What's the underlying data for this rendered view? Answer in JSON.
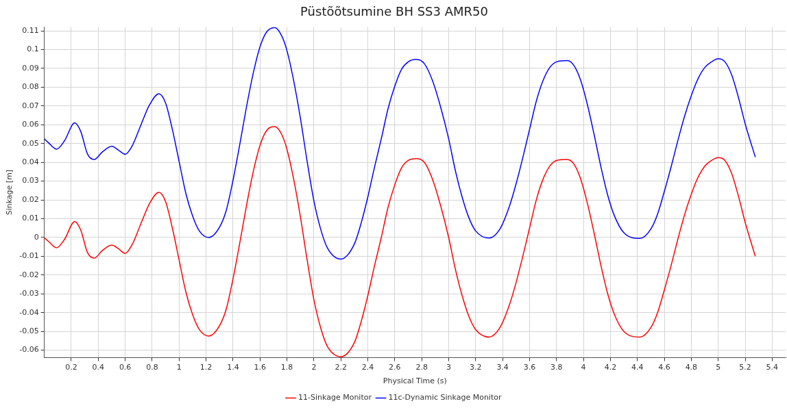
{
  "chart_data": {
    "type": "line",
    "title": "Püstõõtsumine BH SS3 AMR50",
    "xlabel": "Physical Time (s)",
    "ylabel": "Sinkage [m]",
    "x": [
      0,
      0.03,
      0.09,
      0.15,
      0.225,
      0.27,
      0.32,
      0.37,
      0.43,
      0.5,
      0.55,
      0.6,
      0.65,
      0.72,
      0.78,
      0.85,
      0.9,
      0.95,
      1.0,
      1.05,
      1.1,
      1.15,
      1.22,
      1.3,
      1.35,
      1.4,
      1.45,
      1.5,
      1.55,
      1.6,
      1.65,
      1.71,
      1.76,
      1.8,
      1.85,
      1.9,
      1.95,
      2.0,
      2.05,
      2.1,
      2.2,
      2.3,
      2.35,
      2.4,
      2.45,
      2.5,
      2.55,
      2.6,
      2.65,
      2.7,
      2.76,
      2.82,
      2.88,
      2.94,
      3.0,
      3.05,
      3.1,
      3.15,
      3.2,
      3.3,
      3.38,
      3.45,
      3.5,
      3.55,
      3.6,
      3.65,
      3.7,
      3.75,
      3.8,
      3.88,
      3.93,
      3.98,
      4.03,
      4.08,
      4.13,
      4.18,
      4.23,
      4.3,
      4.42,
      4.5,
      4.55,
      4.6,
      4.65,
      4.7,
      4.75,
      4.8,
      4.85,
      4.9,
      4.95,
      5.0,
      5.05,
      5.1,
      5.15,
      5.2,
      5.275
    ],
    "series": [
      {
        "name": "11-Sinkage Monitor",
        "color": "#ff0000",
        "values": [
          -0.0002,
          -0.002,
          -0.0055,
          -0.001,
          0.0085,
          0.004,
          -0.008,
          -0.011,
          -0.007,
          -0.004,
          -0.006,
          -0.0085,
          -0.004,
          0.008,
          0.018,
          0.024,
          0.019,
          0.005,
          -0.012,
          -0.029,
          -0.041,
          -0.049,
          -0.0525,
          -0.047,
          -0.038,
          -0.022,
          -0.003,
          0.017,
          0.035,
          0.049,
          0.057,
          0.059,
          0.055,
          0.047,
          0.031,
          0.011,
          -0.012,
          -0.033,
          -0.048,
          -0.058,
          -0.0635,
          -0.056,
          -0.045,
          -0.031,
          -0.015,
          0.0,
          0.016,
          0.028,
          0.037,
          0.041,
          0.042,
          0.04,
          0.031,
          0.017,
          0.0,
          -0.017,
          -0.031,
          -0.042,
          -0.049,
          -0.053,
          -0.048,
          -0.036,
          -0.024,
          -0.01,
          0.005,
          0.02,
          0.031,
          0.038,
          0.041,
          0.0415,
          0.039,
          0.031,
          0.018,
          0.002,
          -0.015,
          -0.03,
          -0.041,
          -0.05,
          -0.053,
          -0.048,
          -0.04,
          -0.028,
          -0.015,
          -0.001,
          0.012,
          0.023,
          0.032,
          0.038,
          0.041,
          0.0425,
          0.041,
          0.034,
          0.022,
          0.008,
          -0.01
        ]
      },
      {
        "name": "11c-Dynamic Sinkage Monitor",
        "color": "#0000ff",
        "values": [
          0.0525,
          0.0505,
          0.047,
          0.0515,
          0.061,
          0.0565,
          0.0445,
          0.0415,
          0.0455,
          0.0485,
          0.0465,
          0.0443,
          0.0485,
          0.0605,
          0.0705,
          0.0765,
          0.0715,
          0.0575,
          0.0405,
          0.0235,
          0.0115,
          0.0035,
          0.0,
          0.0055,
          0.0145,
          0.0305,
          0.0495,
          0.0695,
          0.0875,
          0.1015,
          0.1095,
          0.1118,
          0.1075,
          0.0995,
          0.0835,
          0.0635,
          0.0405,
          0.0195,
          0.0045,
          -0.0055,
          -0.0115,
          -0.0035,
          0.0075,
          0.0215,
          0.0375,
          0.0525,
          0.0685,
          0.0805,
          0.0895,
          0.0935,
          0.0948,
          0.0925,
          0.0835,
          0.0695,
          0.0525,
          0.0355,
          0.0215,
          0.0105,
          0.0035,
          -0.0003,
          0.0045,
          0.0165,
          0.0285,
          0.0425,
          0.0575,
          0.0725,
          0.0835,
          0.0905,
          0.0935,
          0.0942,
          0.0915,
          0.0835,
          0.0705,
          0.0545,
          0.0375,
          0.0225,
          0.0115,
          0.0025,
          -0.0005,
          0.0045,
          0.0125,
          0.0245,
          0.0375,
          0.0515,
          0.0645,
          0.0755,
          0.0845,
          0.0905,
          0.0935,
          0.0952,
          0.0935,
          0.0865,
          0.0745,
          0.0605,
          0.0428
        ]
      }
    ],
    "xlim": [
      0,
      5.5
    ],
    "xticks": [
      0.2,
      0.4,
      0.6,
      0.8,
      1,
      1.2,
      1.4,
      1.6,
      1.8,
      2,
      2.2,
      2.4,
      2.6,
      2.8,
      3,
      3.2,
      3.4,
      3.6,
      3.8,
      4,
      4.2,
      4.4,
      4.6,
      4.8,
      5,
      5.2,
      5.4
    ],
    "ylim": [
      -0.064,
      0.112
    ],
    "yticks": [
      -0.06,
      -0.05,
      -0.04,
      -0.03,
      -0.02,
      -0.01,
      0,
      0.01,
      0.02,
      0.03,
      0.04,
      0.05,
      0.06,
      0.07,
      0.08,
      0.09,
      0.1,
      0.11
    ],
    "grid": true,
    "legend": "bottom",
    "marker": "none",
    "line_style": "solid"
  }
}
